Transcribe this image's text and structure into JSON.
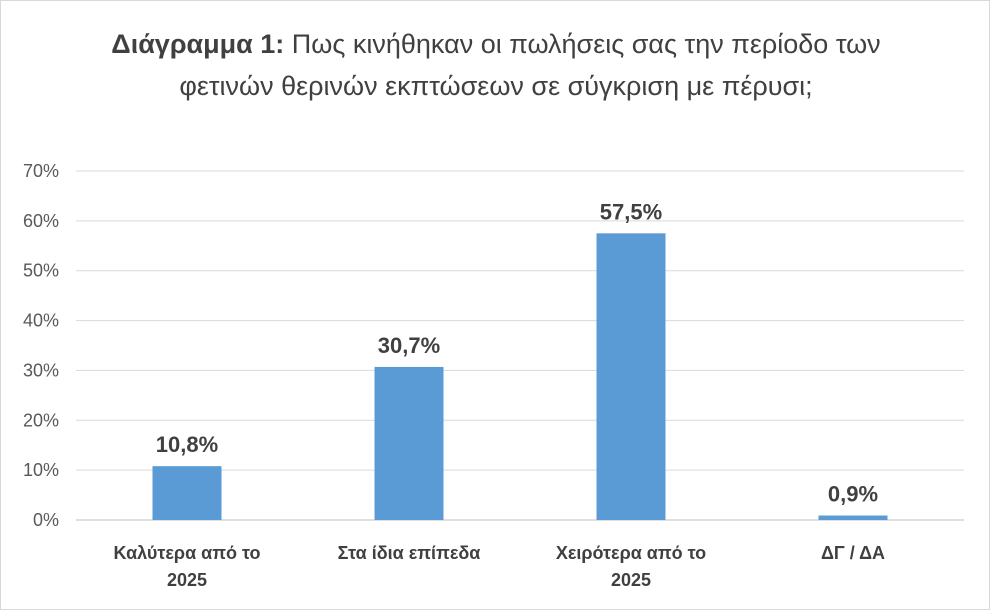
{
  "chart_data": {
    "type": "bar",
    "title_prefix": "Διάγραμμα 1:",
    "title": "Πως κινήθηκαν οι πωλήσεις σας την περίοδο των φετινών θερινών εκπτώσεων σε σύγκριση με πέρυσι;",
    "categories": [
      "Καλύτερα από το 2025",
      "Στα ίδια επίπεδα",
      "Χειρότερα από το 2025",
      "ΔΓ / ΔΑ"
    ],
    "values": [
      10.8,
      30.7,
      57.5,
      0.9
    ],
    "data_labels": [
      "10,8%",
      "30,7%",
      "57,5%",
      "0,9%"
    ],
    "ylim": [
      0,
      70
    ],
    "y_ticks": [
      "0%",
      "10%",
      "20%",
      "30%",
      "40%",
      "50%",
      "60%",
      "70%"
    ],
    "xlabel": "",
    "ylabel": "",
    "grid": true,
    "colors": {
      "bar": "#5b9bd5",
      "grid": "#d9d9d9",
      "axis": "#bfbfbf"
    }
  }
}
